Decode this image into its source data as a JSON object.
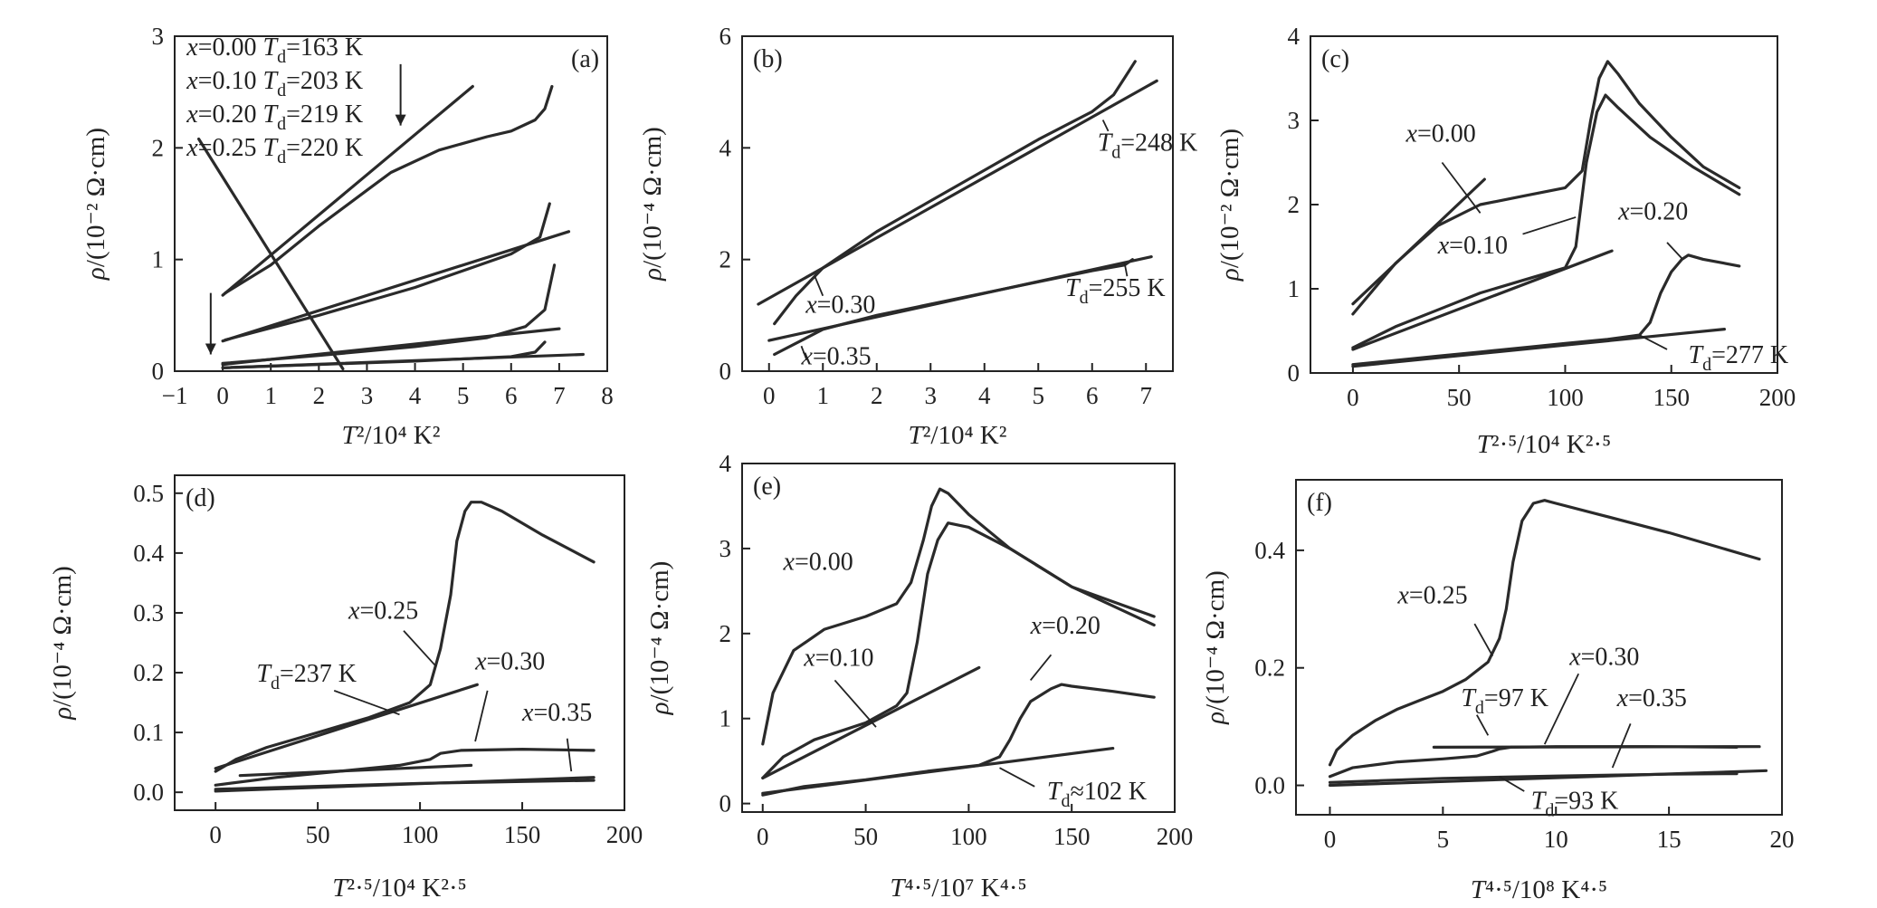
{
  "chart_data": [
    {
      "panel": "(a)",
      "type": "line",
      "xlabel": "T²/10⁴ K²",
      "ylabel": "ρ/(10⁻² Ω·cm)",
      "xlim": [
        -1,
        8
      ],
      "ylim": [
        0,
        3
      ],
      "xticks": [
        "−1",
        "0",
        "1",
        "2",
        "3",
        "4",
        "5",
        "6",
        "7",
        "8"
      ],
      "yticks": [
        "0",
        "1",
        "2",
        "3"
      ],
      "annotations": [
        "x=0.00 Td=163 K",
        "x=0.10 Td=203 K",
        "x=0.20 Td=219 K",
        "x=0.25 Td=220 K"
      ],
      "series": [
        {
          "x": [
            0.05,
            1,
            2,
            3,
            3.5,
            4.5,
            5.5,
            6,
            6.5,
            6.7,
            6.85
          ],
          "y": [
            0.7,
            0.95,
            1.3,
            1.62,
            1.78,
            1.98,
            2.1,
            2.15,
            2.25,
            2.35,
            2.55
          ]
        },
        {
          "x": [
            0,
            5.2
          ],
          "y": [
            0.68,
            2.55
          ]
        },
        {
          "x": [
            0.05,
            2,
            4,
            6,
            6.6,
            6.8
          ],
          "y": [
            0.28,
            0.5,
            0.75,
            1.05,
            1.2,
            1.5
          ]
        },
        {
          "x": [
            0,
            7.2
          ],
          "y": [
            0.27,
            1.25
          ]
        },
        {
          "x": [
            0,
            2,
            4,
            5.5,
            6.3,
            6.7,
            6.9
          ],
          "y": [
            0.07,
            0.14,
            0.22,
            0.3,
            0.4,
            0.55,
            0.95
          ]
        },
        {
          "x": [
            0,
            7
          ],
          "y": [
            0.06,
            0.38
          ]
        },
        {
          "x": [
            0,
            2,
            4,
            6,
            6.5,
            6.7
          ],
          "y": [
            0.03,
            0.06,
            0.09,
            0.13,
            0.17,
            0.26
          ]
        },
        {
          "x": [
            0,
            7.5
          ],
          "y": [
            0.03,
            0.15
          ]
        },
        {
          "x": [
            -0.5,
            2.5
          ],
          "y": [
            2.08,
            0.02
          ]
        }
      ]
    },
    {
      "panel": "(b)",
      "type": "line",
      "xlabel": "T²/10⁴ K²",
      "ylabel": "ρ/(10⁻⁴ Ω·cm)",
      "xlim": [
        -0.5,
        7.5
      ],
      "ylim": [
        0,
        6
      ],
      "xticks": [
        "0",
        "1",
        "2",
        "3",
        "4",
        "5",
        "6",
        "7"
      ],
      "yticks": [
        "0",
        "2",
        "4",
        "6"
      ],
      "annotations": [
        "Td=248 K",
        "Td=255 K",
        "x=0.30",
        "x=0.35"
      ],
      "series": [
        {
          "x": [
            0.1,
            0.5,
            1,
            2,
            3,
            4,
            5,
            6,
            6.4,
            6.6,
            6.8
          ],
          "y": [
            0.85,
            1.35,
            1.85,
            2.5,
            3.05,
            3.6,
            4.15,
            4.65,
            4.95,
            5.25,
            5.55
          ]
        },
        {
          "x": [
            -0.2,
            7.2
          ],
          "y": [
            1.2,
            5.2
          ]
        },
        {
          "x": [
            0.1,
            1,
            2,
            3,
            4,
            5,
            6,
            6.6,
            6.75
          ],
          "y": [
            0.3,
            0.75,
            1.0,
            1.2,
            1.4,
            1.6,
            1.8,
            1.9,
            2.0
          ]
        },
        {
          "x": [
            0,
            7.1
          ],
          "y": [
            0.55,
            2.05
          ]
        }
      ]
    },
    {
      "panel": "(c)",
      "type": "line",
      "xlabel": "T²·⁵/10⁴ K²·⁵",
      "ylabel": "ρ/(10⁻² Ω·cm)",
      "xlim": [
        -20,
        200
      ],
      "ylim": [
        0,
        4
      ],
      "xticks": [
        "0",
        "50",
        "100",
        "150",
        "200"
      ],
      "yticks": [
        "0",
        "1",
        "2",
        "3",
        "4"
      ],
      "annotations": [
        "x=0.00",
        "x=0.10",
        "x=0.20",
        "Td=277 K"
      ],
      "series": [
        {
          "x": [
            0,
            20,
            40,
            60,
            80,
            100,
            108,
            112,
            116,
            120,
            125,
            135,
            150,
            165,
            182
          ],
          "y": [
            0.7,
            1.3,
            1.75,
            2.0,
            2.1,
            2.2,
            2.4,
            3.0,
            3.5,
            3.7,
            3.55,
            3.2,
            2.8,
            2.45,
            2.2
          ]
        },
        {
          "x": [
            0,
            20,
            40,
            60,
            80,
            100,
            105,
            110,
            115,
            119,
            125,
            140,
            160,
            182
          ],
          "y": [
            0.3,
            0.55,
            0.75,
            0.95,
            1.1,
            1.25,
            1.5,
            2.5,
            3.1,
            3.3,
            3.15,
            2.8,
            2.45,
            2.12
          ]
        },
        {
          "x": [
            0,
            20,
            40,
            60,
            80,
            100,
            120,
            135,
            140,
            145,
            150,
            155,
            158,
            165,
            182
          ],
          "y": [
            0.1,
            0.15,
            0.2,
            0.25,
            0.3,
            0.35,
            0.4,
            0.45,
            0.6,
            0.95,
            1.2,
            1.35,
            1.4,
            1.35,
            1.27
          ]
        },
        {
          "x": [
            0,
            62
          ],
          "y": [
            0.82,
            2.3
          ]
        },
        {
          "x": [
            0,
            122
          ],
          "y": [
            0.28,
            1.45
          ]
        },
        {
          "x": [
            0,
            175
          ],
          "y": [
            0.08,
            0.52
          ]
        }
      ]
    },
    {
      "panel": "(d)",
      "type": "line",
      "xlabel": "T²·⁵/10⁴ K²·⁵",
      "ylabel": "ρ/(10⁻⁴ Ω·cm)",
      "xlim": [
        -20,
        200
      ],
      "ylim": [
        -0.03,
        0.53
      ],
      "xticks": [
        "0",
        "50",
        "100",
        "150",
        "200"
      ],
      "yticks": [
        "0.0",
        "0.1",
        "0.2",
        "0.3",
        "0.4",
        "0.5"
      ],
      "annotations": [
        "x=0.25",
        "Td=237 K",
        "x=0.30",
        "x=0.35"
      ],
      "series": [
        {
          "x": [
            0,
            10,
            25,
            50,
            75,
            95,
            105,
            110,
            115,
            118,
            122,
            125,
            130,
            140,
            160,
            185
          ],
          "y": [
            0.035,
            0.055,
            0.075,
            0.1,
            0.125,
            0.15,
            0.18,
            0.24,
            0.33,
            0.42,
            0.47,
            0.485,
            0.485,
            0.47,
            0.43,
            0.385
          ]
        },
        {
          "x": [
            0,
            128
          ],
          "y": [
            0.04,
            0.18
          ]
        },
        {
          "x": [
            0,
            30,
            60,
            90,
            105,
            110,
            120,
            150,
            185
          ],
          "y": [
            0.012,
            0.025,
            0.035,
            0.045,
            0.055,
            0.065,
            0.07,
            0.072,
            0.07
          ]
        },
        {
          "x": [
            12,
            125
          ],
          "y": [
            0.028,
            0.045
          ]
        },
        {
          "x": [
            0,
            50,
            100,
            150,
            185
          ],
          "y": [
            0.005,
            0.01,
            0.015,
            0.018,
            0.02
          ]
        },
        {
          "x": [
            0,
            185
          ],
          "y": [
            0.002,
            0.025
          ]
        }
      ]
    },
    {
      "panel": "(e)",
      "type": "line",
      "xlabel": "T⁴·⁵/10⁷ K⁴·⁵",
      "ylabel": "ρ/(10⁻⁴ Ω·cm)",
      "xlim": [
        -10,
        200
      ],
      "ylim": [
        -0.1,
        4
      ],
      "xticks": [
        "0",
        "50",
        "100",
        "150",
        "200"
      ],
      "yticks": [
        "0",
        "1",
        "2",
        "3",
        "4"
      ],
      "annotations": [
        "x=0.00",
        "x=0.10",
        "x=0.20",
        "Td≈102 K"
      ],
      "series": [
        {
          "x": [
            0,
            5,
            15,
            30,
            50,
            65,
            72,
            78,
            82,
            86,
            90,
            100,
            120,
            150,
            190
          ],
          "y": [
            0.7,
            1.3,
            1.8,
            2.05,
            2.2,
            2.35,
            2.6,
            3.1,
            3.5,
            3.7,
            3.65,
            3.4,
            3.0,
            2.55,
            2.2
          ]
        },
        {
          "x": [
            0,
            10,
            25,
            50,
            65,
            70,
            75,
            80,
            85,
            90,
            100,
            120,
            150,
            190
          ],
          "y": [
            0.3,
            0.55,
            0.75,
            0.95,
            1.15,
            1.3,
            1.9,
            2.7,
            3.1,
            3.3,
            3.25,
            3.0,
            2.55,
            2.1
          ]
        },
        {
          "x": [
            0,
            20,
            50,
            80,
            105,
            115,
            120,
            125,
            130,
            140,
            145,
            150,
            170,
            190
          ],
          "y": [
            0.1,
            0.2,
            0.28,
            0.38,
            0.45,
            0.55,
            0.75,
            1.0,
            1.2,
            1.35,
            1.4,
            1.38,
            1.32,
            1.25
          ]
        },
        {
          "x": [
            0,
            105
          ],
          "y": [
            0.3,
            1.6
          ]
        },
        {
          "x": [
            0,
            170
          ],
          "y": [
            0.12,
            0.65
          ]
        }
      ]
    },
    {
      "panel": "(f)",
      "type": "line",
      "xlabel": "T⁴·⁵/10⁸ K⁴·⁵",
      "ylabel": "ρ/(10⁻⁴ Ω·cm)",
      "xlim": [
        -1.5,
        20
      ],
      "ylim": [
        -0.05,
        0.52
      ],
      "xticks": [
        "0",
        "5",
        "10",
        "15",
        "20"
      ],
      "yticks": [
        "0.0",
        "0.2",
        "0.4"
      ],
      "annotations": [
        "x=0.25",
        "x=0.30",
        "Td=97 K",
        "x=0.35",
        "Td=93 K"
      ],
      "series": [
        {
          "x": [
            0,
            0.3,
            1,
            2,
            3,
            4,
            5,
            6,
            7,
            7.5,
            7.8,
            8.1,
            8.5,
            9,
            9.5,
            10,
            12,
            15,
            19
          ],
          "y": [
            0.035,
            0.06,
            0.085,
            0.11,
            0.13,
            0.145,
            0.16,
            0.18,
            0.21,
            0.25,
            0.3,
            0.38,
            0.45,
            0.48,
            0.485,
            0.48,
            0.46,
            0.43,
            0.385
          ]
        },
        {
          "x": [
            0,
            1,
            3,
            5,
            6.5,
            7.2,
            7.5,
            8,
            10,
            14,
            18
          ],
          "y": [
            0.015,
            0.03,
            0.04,
            0.045,
            0.05,
            0.058,
            0.062,
            0.065,
            0.066,
            0.066,
            0.065
          ]
        },
        {
          "x": [
            4.6,
            19
          ],
          "y": [
            0.065,
            0.066
          ]
        },
        {
          "x": [
            0,
            5,
            10,
            15,
            18
          ],
          "y": [
            0.005,
            0.012,
            0.016,
            0.019,
            0.02
          ]
        },
        {
          "x": [
            0,
            19.3
          ],
          "y": [
            0.0,
            0.025
          ]
        }
      ]
    }
  ]
}
